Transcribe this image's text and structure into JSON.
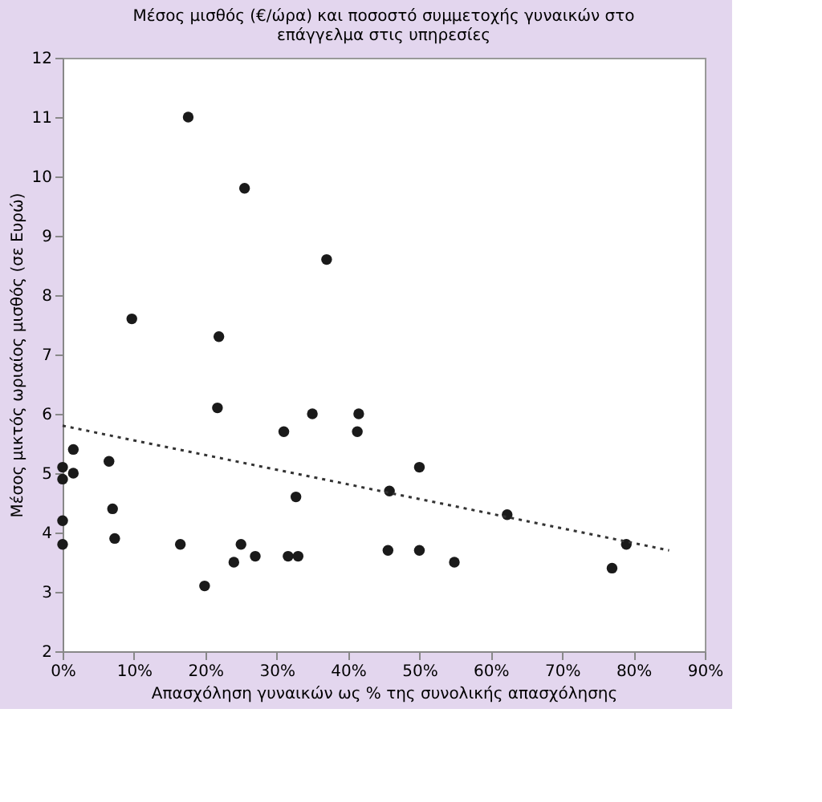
{
  "chart_data": {
    "type": "scatter",
    "title": [
      "Μέσος μισθός (€/ώρα) και ποσοστό συμμετοχής γυναικών στο",
      "επάγγελμα στις υπηρεσίες"
    ],
    "xlabel": "Απασχόληση γυναικών ως % της συνολικής απασχόλησης",
    "ylabel": "Μέσος μικτός ωριαίος μισθός (σε Ευρώ)",
    "series": [
      {
        "color": "#1a1a1a",
        "marker": "circle",
        "x": [
          1.5,
          1.5,
          0,
          0,
          0,
          0,
          9.7,
          6.5,
          7,
          7.3,
          17.6,
          16.5,
          19.9,
          21.9,
          21.7,
          25.5,
          24,
          25,
          27,
          31,
          31.6,
          33,
          32.7,
          35,
          37,
          41.3,
          41.5,
          45.8,
          45.6,
          50,
          50,
          54.9,
          62.3,
          77,
          79
        ],
        "values": [
          5.4,
          5.0,
          5.1,
          4.9,
          4.2,
          3.8,
          7.6,
          5.2,
          4.4,
          3.9,
          11.0,
          3.8,
          3.1,
          7.3,
          6.1,
          9.8,
          3.5,
          3.8,
          3.6,
          5.7,
          3.6,
          3.6,
          4.6,
          6.0,
          8.6,
          5.7,
          6.0,
          4.7,
          3.7,
          5.1,
          3.7,
          3.5,
          4.3,
          3.4,
          3.8
        ]
      },
      {
        "type": "line",
        "color": "#333333",
        "line_style": "dotted",
        "marker": "none",
        "x": [
          0,
          85
        ],
        "values": [
          5.8,
          3.7
        ]
      }
    ],
    "xlim": [
      0,
      90
    ],
    "xticks": [
      {
        "value": 0,
        "label": "0%"
      },
      {
        "value": 10,
        "label": "10%"
      },
      {
        "value": 20,
        "label": "20%"
      },
      {
        "value": 30,
        "label": "30%"
      },
      {
        "value": 40,
        "label": "40%"
      },
      {
        "value": 50,
        "label": "50%"
      },
      {
        "value": 60,
        "label": "60%"
      },
      {
        "value": 70,
        "label": "70%"
      },
      {
        "value": 80,
        "label": "80%"
      },
      {
        "value": 90,
        "label": "90%"
      }
    ],
    "ylim": [
      2,
      12
    ],
    "yticks": [
      2,
      3,
      4,
      5,
      6,
      7,
      8,
      9,
      10,
      11,
      12
    ],
    "grid": false
  }
}
